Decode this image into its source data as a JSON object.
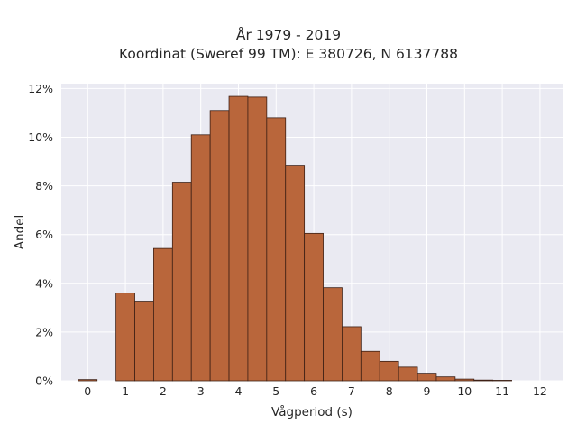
{
  "chart_data": {
    "type": "bar",
    "title": "År 1979 - 2019",
    "subtitle": "Koordinat (Sweref 99 TM): E 380726, N 6137788",
    "xlabel": "Vågperiod (s)",
    "ylabel": "Andel",
    "xlim": [
      -0.7,
      12.6
    ],
    "ylim": [
      0,
      12.2
    ],
    "x_ticks": [
      0,
      1,
      2,
      3,
      4,
      5,
      6,
      7,
      8,
      9,
      10,
      11,
      12
    ],
    "y_ticks": [
      0,
      2,
      4,
      6,
      8,
      10,
      12
    ],
    "y_tick_labels": [
      "0%",
      "2%",
      "4%",
      "6%",
      "8%",
      "10%",
      "12%"
    ],
    "bin_width": 0.5,
    "bin_starts": [
      -0.25,
      0.25,
      0.75,
      1.25,
      1.75,
      2.25,
      2.75,
      3.25,
      3.75,
      4.25,
      4.75,
      5.25,
      5.75,
      6.25,
      6.75,
      7.25,
      7.75,
      8.25,
      8.75,
      9.25,
      9.75,
      10.25,
      10.75,
      11.25
    ],
    "values": [
      0.05,
      0.0,
      3.6,
      3.27,
      5.43,
      8.15,
      10.1,
      11.1,
      11.68,
      11.65,
      10.8,
      8.85,
      6.05,
      3.82,
      2.22,
      1.21,
      0.8,
      0.56,
      0.31,
      0.16,
      0.07,
      0.03,
      0.02,
      0.0
    ],
    "grid": true,
    "colors": {
      "bar_fill": "#b9663b",
      "bar_edge": "#3d2015",
      "plot_bg": "#eaeaf2",
      "grid": "#ffffff"
    }
  }
}
